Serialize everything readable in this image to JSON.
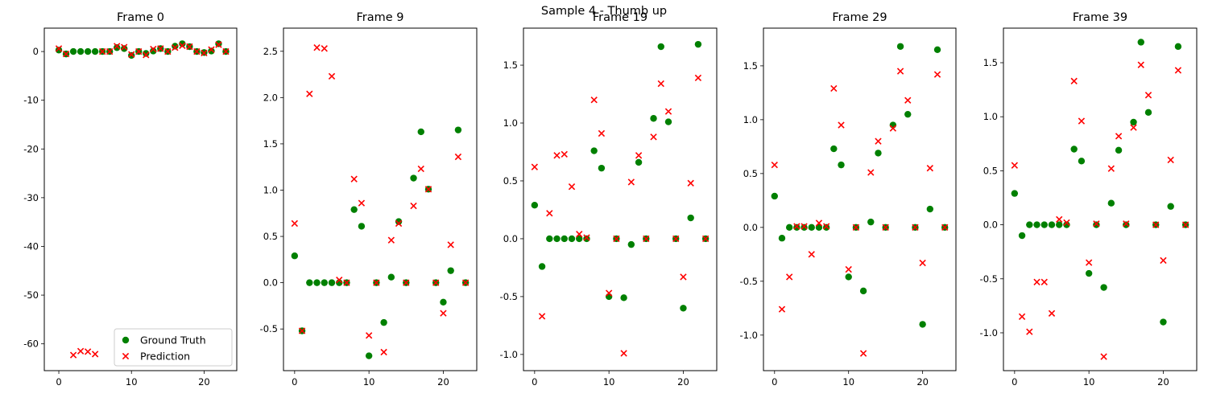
{
  "figure": {
    "suptitle": "Sample 4 - Thumb up",
    "legend": {
      "ground_truth_label": "Ground Truth",
      "prediction_label": "Prediction"
    },
    "colors": {
      "ground_truth": "#008000",
      "prediction": "#ff0000"
    }
  },
  "chart_data": [
    {
      "type": "scatter",
      "title": "Frame 0",
      "xlim": [
        -2,
        24.5
      ],
      "ylim": [
        -65.5,
        4.8
      ],
      "xticks": [
        0,
        10,
        20
      ],
      "yticks": [
        0,
        -10,
        -20,
        -30,
        -40,
        -50,
        -60
      ],
      "legend_position": "lower right",
      "series": [
        {
          "name": "Ground Truth",
          "marker": "circle",
          "x": [
            0,
            1,
            2,
            3,
            4,
            5,
            6,
            7,
            8,
            9,
            10,
            11,
            12,
            13,
            14,
            15,
            16,
            17,
            18,
            19,
            20,
            21,
            22,
            23
          ],
          "y": [
            0.3,
            -0.5,
            0,
            0,
            0,
            0,
            0,
            0,
            0.8,
            0.6,
            -0.8,
            0,
            -0.4,
            0.1,
            0.6,
            0,
            1.1,
            1.6,
            1.0,
            0,
            -0.2,
            0.1,
            1.6,
            0
          ]
        },
        {
          "name": "Prediction",
          "marker": "x",
          "x": [
            0,
            1,
            2,
            3,
            4,
            5,
            6,
            7,
            8,
            9,
            10,
            11,
            12,
            13,
            14,
            15,
            16,
            17,
            18,
            19,
            20,
            21,
            22,
            23
          ],
          "y": [
            0.6,
            -0.5,
            -62.3,
            -61.5,
            -61.6,
            -62.1,
            0,
            0,
            1.1,
            0.9,
            -0.6,
            0,
            -0.7,
            0.5,
            0.6,
            0,
            0.8,
            1.2,
            1.0,
            0,
            -0.3,
            0.4,
            1.4,
            0
          ]
        }
      ]
    },
    {
      "type": "scatter",
      "title": "Frame 9",
      "xlim": [
        -1.5,
        24.5
      ],
      "ylim": [
        -0.95,
        2.75
      ],
      "xticks": [
        0,
        10,
        20
      ],
      "yticks": [
        -0.5,
        0.0,
        0.5,
        1.0,
        1.5,
        2.0,
        2.5
      ],
      "series": [
        {
          "name": "Ground Truth",
          "marker": "circle",
          "x": [
            0,
            1,
            2,
            3,
            4,
            5,
            6,
            7,
            8,
            9,
            10,
            11,
            12,
            13,
            14,
            15,
            16,
            17,
            18,
            19,
            20,
            21,
            22,
            23
          ],
          "y": [
            0.29,
            -0.52,
            0,
            0,
            0,
            0,
            0,
            0,
            0.79,
            0.61,
            -0.79,
            0,
            -0.43,
            0.06,
            0.66,
            0,
            1.13,
            1.63,
            1.01,
            0,
            -0.21,
            0.13,
            1.65,
            0
          ]
        },
        {
          "name": "Prediction",
          "marker": "x",
          "x": [
            0,
            1,
            2,
            3,
            4,
            5,
            6,
            7,
            8,
            9,
            10,
            11,
            12,
            13,
            14,
            15,
            16,
            17,
            18,
            19,
            20,
            21,
            22,
            23
          ],
          "y": [
            0.64,
            -0.52,
            2.04,
            2.54,
            2.53,
            2.23,
            0.03,
            0,
            1.12,
            0.86,
            -0.57,
            0,
            -0.75,
            0.46,
            0.64,
            0,
            0.83,
            1.23,
            1.01,
            0,
            -0.33,
            0.41,
            1.36,
            0
          ]
        }
      ]
    },
    {
      "type": "scatter",
      "title": "Frame 19",
      "xlim": [
        -1.5,
        24.5
      ],
      "ylim": [
        -1.14,
        1.82
      ],
      "xticks": [
        0,
        10,
        20
      ],
      "yticks": [
        -1.0,
        -0.5,
        0.0,
        0.5,
        1.0,
        1.5
      ],
      "series": [
        {
          "name": "Ground Truth",
          "marker": "circle",
          "x": [
            0,
            1,
            2,
            3,
            4,
            5,
            6,
            7,
            8,
            9,
            10,
            11,
            12,
            13,
            14,
            15,
            16,
            17,
            18,
            19,
            20,
            21,
            22,
            23
          ],
          "y": [
            0.29,
            -0.24,
            0,
            0,
            0,
            0,
            0,
            0,
            0.76,
            0.61,
            -0.5,
            0,
            -0.51,
            -0.05,
            0.66,
            0,
            1.04,
            1.66,
            1.01,
            0,
            -0.6,
            0.18,
            1.68,
            0
          ]
        },
        {
          "name": "Prediction",
          "marker": "x",
          "x": [
            0,
            1,
            2,
            3,
            4,
            5,
            6,
            7,
            8,
            9,
            10,
            11,
            12,
            13,
            14,
            15,
            16,
            17,
            18,
            19,
            20,
            21,
            22,
            23
          ],
          "y": [
            0.62,
            -0.67,
            0.22,
            0.72,
            0.73,
            0.45,
            0.04,
            0.01,
            1.2,
            0.91,
            -0.47,
            0,
            -0.99,
            0.49,
            0.72,
            0,
            0.88,
            1.34,
            1.1,
            0,
            -0.33,
            0.48,
            1.39,
            0
          ]
        }
      ]
    },
    {
      "type": "scatter",
      "title": "Frame 29",
      "xlim": [
        -1.5,
        24.5
      ],
      "ylim": [
        -1.33,
        1.85
      ],
      "xticks": [
        0,
        10,
        20
      ],
      "yticks": [
        -1.0,
        -0.5,
        0.0,
        0.5,
        1.0,
        1.5
      ],
      "series": [
        {
          "name": "Ground Truth",
          "marker": "circle",
          "x": [
            0,
            1,
            2,
            3,
            4,
            5,
            6,
            7,
            8,
            9,
            10,
            11,
            12,
            13,
            14,
            15,
            16,
            17,
            18,
            19,
            20,
            21,
            22,
            23
          ],
          "y": [
            0.29,
            -0.1,
            0,
            0,
            0,
            0,
            0,
            0,
            0.73,
            0.58,
            -0.46,
            0,
            -0.59,
            0.05,
            0.69,
            0,
            0.95,
            1.68,
            1.05,
            0,
            -0.9,
            0.17,
            1.65,
            0
          ]
        },
        {
          "name": "Prediction",
          "marker": "x",
          "x": [
            0,
            1,
            2,
            3,
            4,
            5,
            6,
            7,
            8,
            9,
            10,
            11,
            12,
            13,
            14,
            15,
            16,
            17,
            18,
            19,
            20,
            21,
            22,
            23
          ],
          "y": [
            0.58,
            -0.76,
            -0.46,
            0.01,
            0.01,
            -0.25,
            0.04,
            0.01,
            1.29,
            0.95,
            -0.39,
            0,
            -1.17,
            0.51,
            0.8,
            0,
            0.92,
            1.45,
            1.18,
            0,
            -0.33,
            0.55,
            1.42,
            0
          ]
        }
      ]
    },
    {
      "type": "scatter",
      "title": "Frame 39",
      "xlim": [
        -1.5,
        24.5
      ],
      "ylim": [
        -1.35,
        1.82
      ],
      "xticks": [
        0,
        10,
        20
      ],
      "yticks": [
        -1.0,
        -0.5,
        0.0,
        0.5,
        1.0,
        1.5
      ],
      "series": [
        {
          "name": "Ground Truth",
          "marker": "circle",
          "x": [
            0,
            1,
            2,
            3,
            4,
            5,
            6,
            7,
            8,
            9,
            10,
            11,
            12,
            13,
            14,
            15,
            16,
            17,
            18,
            19,
            20,
            21,
            22,
            23
          ],
          "y": [
            0.29,
            -0.1,
            0,
            0,
            0,
            0,
            0,
            0,
            0.7,
            0.59,
            -0.45,
            0,
            -0.58,
            0.2,
            0.69,
            0,
            0.95,
            1.69,
            1.04,
            0,
            -0.9,
            0.17,
            1.65,
            0
          ]
        },
        {
          "name": "Prediction",
          "marker": "x",
          "x": [
            0,
            1,
            2,
            3,
            4,
            5,
            6,
            7,
            8,
            9,
            10,
            11,
            12,
            13,
            14,
            15,
            16,
            17,
            18,
            19,
            20,
            21,
            22,
            23
          ],
          "y": [
            0.55,
            -0.85,
            -0.99,
            -0.53,
            -0.53,
            -0.82,
            0.05,
            0.02,
            1.33,
            0.96,
            -0.35,
            0.01,
            -1.22,
            0.52,
            0.82,
            0.01,
            0.9,
            1.48,
            1.2,
            0,
            -0.33,
            0.6,
            1.43,
            0
          ]
        }
      ]
    }
  ]
}
